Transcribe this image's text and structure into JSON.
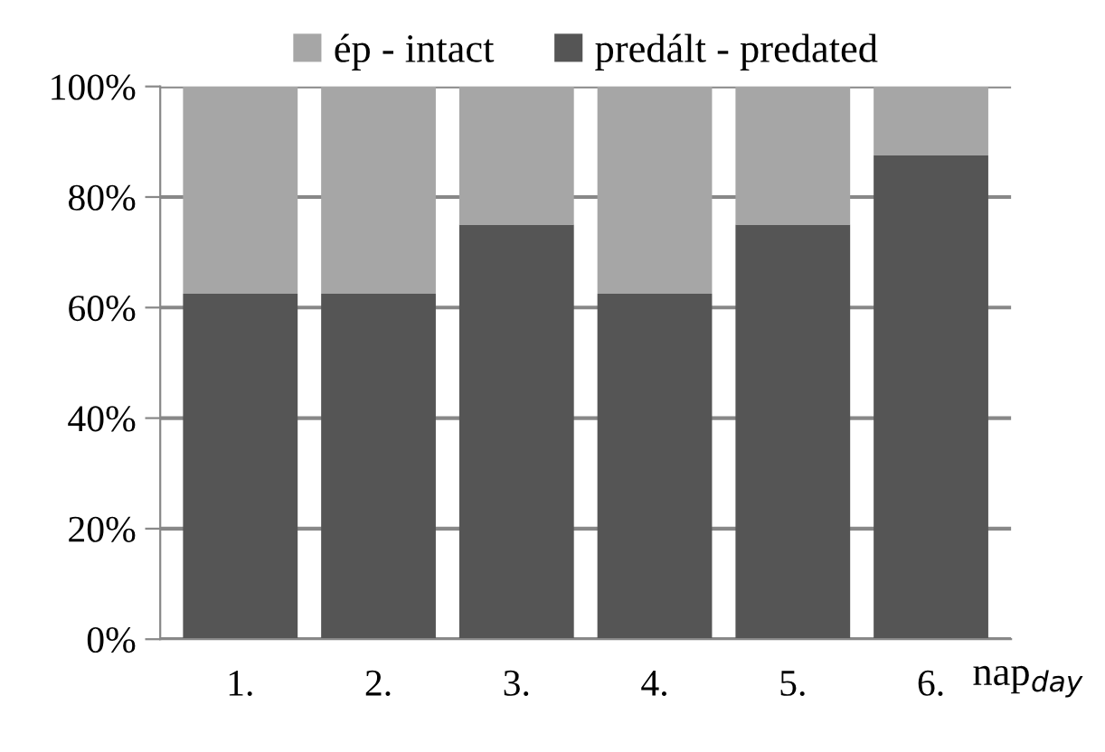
{
  "chart_data": {
    "type": "bar",
    "stacked": true,
    "categories": [
      "1.",
      "2.",
      "3.",
      "4.",
      "5.",
      "6."
    ],
    "series": [
      {
        "name": "predált - predated",
        "color": "#555555",
        "values": [
          62.5,
          62.5,
          75,
          62.5,
          75,
          87.5
        ]
      },
      {
        "name": "ép - intact",
        "color": "#a6a6a6",
        "values": [
          37.5,
          37.5,
          25,
          37.5,
          25,
          12.5
        ]
      }
    ],
    "xlabel": "nap$_{day}$",
    "ylim": [
      0,
      100
    ],
    "yticks": [
      {
        "value": 0,
        "label": "0%"
      },
      {
        "value": 20,
        "label": "20%"
      },
      {
        "value": 40,
        "label": "40%"
      },
      {
        "value": 60,
        "label": "60%"
      },
      {
        "value": 80,
        "label": "80%"
      },
      {
        "value": 100,
        "label": "100%"
      }
    ],
    "grid": "y",
    "legend": "top"
  }
}
